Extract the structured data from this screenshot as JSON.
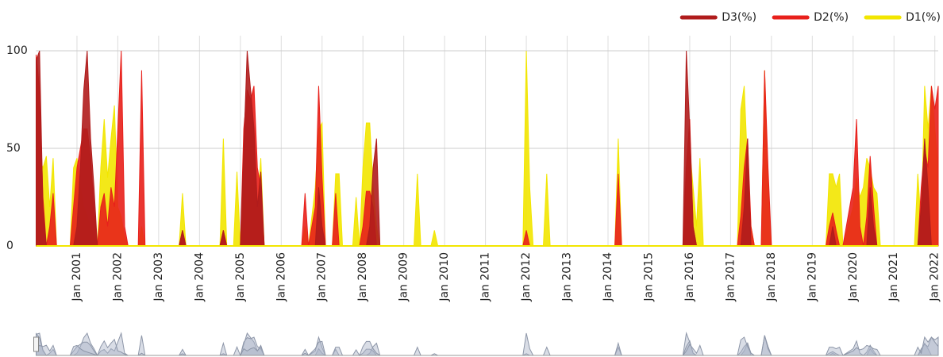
{
  "chart_data": {
    "type": "area",
    "x": [
      "2000-01",
      "2000-02",
      "2000-03",
      "2000-04",
      "2000-05",
      "2000-06",
      "2000-07",
      "2000-11",
      "2000-12",
      "2001-01",
      "2001-02",
      "2001-03",
      "2001-04",
      "2001-05",
      "2001-06",
      "2001-07",
      "2001-08",
      "2001-09",
      "2001-10",
      "2001-11",
      "2001-12",
      "2002-01",
      "2002-02",
      "2002-03",
      "2002-04",
      "2002-07",
      "2002-08",
      "2002-09",
      "2003-07",
      "2003-08",
      "2003-09",
      "2004-07",
      "2004-08",
      "2004-09",
      "2004-11",
      "2004-12",
      "2005-01",
      "2005-02",
      "2005-03",
      "2005-04",
      "2005-05",
      "2005-06",
      "2005-07",
      "2005-08",
      "2006-07",
      "2006-08",
      "2006-09",
      "2006-11",
      "2006-12",
      "2007-01",
      "2007-02",
      "2007-04",
      "2007-05",
      "2007-06",
      "2007-07",
      "2007-10",
      "2007-11",
      "2007-12",
      "2008-01",
      "2008-02",
      "2008-03",
      "2008-04",
      "2008-05",
      "2008-06",
      "2009-04",
      "2009-05",
      "2009-06",
      "2009-09",
      "2009-10",
      "2009-11",
      "2011-12",
      "2012-01",
      "2012-02",
      "2012-03",
      "2012-06",
      "2012-07",
      "2012-08",
      "2014-03",
      "2014-04",
      "2014-05",
      "2015-11",
      "2015-12",
      "2016-01",
      "2016-02",
      "2016-03",
      "2016-04",
      "2016-05",
      "2017-03",
      "2017-04",
      "2017-05",
      "2017-06",
      "2017-07",
      "2017-08",
      "2017-10",
      "2017-11",
      "2017-12",
      "2018-01",
      "2019-05",
      "2019-06",
      "2019-07",
      "2019-08",
      "2019-09",
      "2019-10",
      "2020-01",
      "2020-02",
      "2020-03",
      "2020-04",
      "2020-05",
      "2020-06",
      "2020-07",
      "2020-08",
      "2020-09",
      "2021-07",
      "2021-08",
      "2021-09",
      "2021-10",
      "2021-11",
      "2021-12",
      "2022-01",
      "2022-02"
    ],
    "series": [
      {
        "name": "D3(%)",
        "color": "#b01c1c",
        "values": [
          95,
          100,
          20,
          0,
          0,
          0,
          0,
          0,
          0,
          10,
          40,
          80,
          100,
          55,
          30,
          0,
          0,
          0,
          0,
          0,
          0,
          0,
          0,
          0,
          0,
          0,
          0,
          0,
          0,
          8,
          0,
          0,
          8,
          0,
          0,
          0,
          0,
          50,
          100,
          80,
          60,
          20,
          38,
          0,
          0,
          0,
          0,
          0,
          30,
          10,
          0,
          0,
          0,
          0,
          0,
          0,
          0,
          0,
          0,
          0,
          10,
          40,
          55,
          0,
          0,
          0,
          0,
          0,
          0,
          0,
          0,
          0,
          0,
          0,
          0,
          0,
          0,
          0,
          0,
          0,
          0,
          100,
          60,
          10,
          0,
          0,
          0,
          0,
          0,
          20,
          55,
          0,
          0,
          0,
          0,
          0,
          0,
          0,
          0,
          10,
          0,
          0,
          0,
          0,
          0,
          0,
          0,
          0,
          30,
          10,
          0,
          0,
          0,
          0,
          20,
          55,
          30,
          0,
          0,
          0
        ]
      },
      {
        "name": "D2(%)",
        "color": "#e8201b",
        "values": [
          98,
          80,
          25,
          0,
          10,
          27,
          0,
          0,
          20,
          40,
          50,
          60,
          60,
          45,
          20,
          0,
          20,
          27,
          10,
          30,
          20,
          60,
          100,
          10,
          0,
          0,
          90,
          0,
          0,
          8,
          0,
          0,
          8,
          0,
          0,
          0,
          0,
          60,
          80,
          75,
          82,
          40,
          30,
          0,
          0,
          27,
          0,
          20,
          82,
          35,
          0,
          0,
          27,
          0,
          0,
          0,
          0,
          0,
          10,
          28,
          28,
          20,
          0,
          0,
          0,
          0,
          0,
          0,
          0,
          0,
          0,
          8,
          0,
          0,
          0,
          0,
          0,
          0,
          37,
          0,
          0,
          40,
          65,
          10,
          0,
          0,
          0,
          0,
          15,
          40,
          55,
          10,
          0,
          0,
          90,
          40,
          0,
          0,
          10,
          17,
          8,
          0,
          0,
          30,
          65,
          10,
          0,
          15,
          46,
          20,
          0,
          0,
          0,
          0,
          30,
          50,
          40,
          82,
          70,
          82
        ]
      },
      {
        "name": "D1(%)",
        "color": "#f2e600",
        "values": [
          30,
          45,
          40,
          46,
          20,
          45,
          0,
          0,
          40,
          45,
          30,
          20,
          15,
          10,
          5,
          0,
          40,
          65,
          35,
          55,
          72,
          20,
          15,
          5,
          0,
          0,
          10,
          0,
          0,
          27,
          0,
          0,
          55,
          0,
          0,
          38,
          0,
          30,
          20,
          30,
          35,
          20,
          45,
          0,
          0,
          10,
          0,
          30,
          60,
          63,
          0,
          0,
          37,
          37,
          0,
          0,
          25,
          0,
          40,
          63,
          63,
          30,
          10,
          0,
          0,
          37,
          0,
          0,
          8,
          0,
          0,
          100,
          30,
          0,
          0,
          37,
          0,
          0,
          55,
          0,
          0,
          20,
          50,
          30,
          10,
          45,
          0,
          0,
          70,
          82,
          40,
          10,
          0,
          0,
          90,
          30,
          0,
          0,
          37,
          37,
          30,
          37,
          0,
          20,
          35,
          25,
          30,
          45,
          40,
          30,
          27,
          0,
          0,
          37,
          10,
          82,
          60,
          82,
          60,
          40
        ]
      }
    ],
    "xlim": [
      "2000-01",
      "2022-02"
    ],
    "xticks": [
      {
        "value": "2001-01",
        "label": "Jan 2001"
      },
      {
        "value": "2002-01",
        "label": "Jan 2002"
      },
      {
        "value": "2003-01",
        "label": "Jan 2003"
      },
      {
        "value": "2004-01",
        "label": "Jan 2004"
      },
      {
        "value": "2005-01",
        "label": "Jan 2005"
      },
      {
        "value": "2006-01",
        "label": "Jan 2006"
      },
      {
        "value": "2007-01",
        "label": "Jan 2007"
      },
      {
        "value": "2008-01",
        "label": "Jan 2008"
      },
      {
        "value": "2009-01",
        "label": "Jan 2009"
      },
      {
        "value": "2010-01",
        "label": "Jan 2010"
      },
      {
        "value": "2011-01",
        "label": "Jan 2011"
      },
      {
        "value": "2012-01",
        "label": "Jan 2012"
      },
      {
        "value": "2013-01",
        "label": "Jan 2013"
      },
      {
        "value": "2014-01",
        "label": "Jan 2014"
      },
      {
        "value": "2015-01",
        "label": "Jan 2015"
      },
      {
        "value": "2016-01",
        "label": "Jan 2016"
      },
      {
        "value": "2017-01",
        "label": "Jan 2017"
      },
      {
        "value": "2018-01",
        "label": "Jan 2018"
      },
      {
        "value": "2019-01",
        "label": "Jan 2019"
      },
      {
        "value": "2020-01",
        "label": "Jan 2020"
      },
      {
        "value": "2021-01",
        "label": "Jan 2021"
      },
      {
        "value": "2022-01",
        "label": "Jan 2022"
      }
    ],
    "ylim": [
      0,
      100
    ],
    "yticks": [
      0,
      50,
      100
    ],
    "grid": true,
    "legend": "upper right"
  }
}
